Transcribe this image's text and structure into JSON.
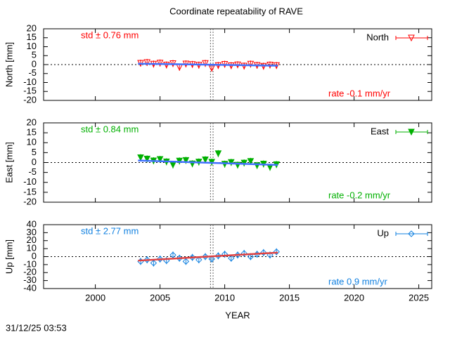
{
  "title": "Coordinate repeatability of RAVE",
  "footer": "31/12/25 03:53",
  "chart_data": [
    {
      "type": "scatter",
      "ylabel": "North [mm]",
      "xlim": [
        1996,
        2026
      ],
      "xticks": [
        2000,
        2005,
        2010,
        2015,
        2020,
        2025
      ],
      "ylim": [
        -20,
        20
      ],
      "yticks": [
        -20,
        -15,
        -10,
        -5,
        0,
        5,
        10,
        15,
        20
      ],
      "annotations": [
        "std ± 0.76 mm",
        "rate -0.1 mm/yr"
      ],
      "color": "#ff0000",
      "vlines": [
        2008.9,
        2009.1
      ],
      "series": [
        {
          "name": "North",
          "color": "#ff0000",
          "marker": "triangle-open",
          "x": [
            2003.5,
            2004,
            2004.5,
            2005,
            2005.5,
            2006,
            2006.5,
            2007,
            2007.5,
            2008,
            2008.5,
            2009,
            2009.5,
            2010,
            2010.5,
            2011,
            2011.5,
            2012,
            2012.5,
            2013,
            2013.5,
            2014
          ],
          "values": [
            0.8,
            1.2,
            0.3,
            0.9,
            -0.2,
            0.6,
            -1.5,
            0.4,
            0.1,
            -0.3,
            0.7,
            -2.0,
            -0.5,
            0.2,
            -0.6,
            -0.1,
            -0.8,
            0.3,
            -0.4,
            -0.9,
            -0.2,
            -0.5
          ]
        }
      ],
      "trend": {
        "color": "#4070ff",
        "x": [
          2003.3,
          2014.1
        ],
        "values": [
          0.5,
          -0.6
        ]
      }
    },
    {
      "type": "scatter",
      "ylabel": "East [mm]",
      "xlim": [
        1996,
        2026
      ],
      "xticks": [
        2000,
        2005,
        2010,
        2015,
        2020,
        2025
      ],
      "ylim": [
        -20,
        20
      ],
      "yticks": [
        -20,
        -15,
        -10,
        -5,
        0,
        5,
        10,
        15,
        20
      ],
      "annotations": [
        "std ± 0.84 mm",
        "rate -0.2 mm/yr"
      ],
      "color": "#00b000",
      "vlines": [
        2008.9,
        2009.1
      ],
      "series": [
        {
          "name": "East",
          "color": "#00b000",
          "marker": "triangle-filled",
          "x": [
            2003.5,
            2004,
            2004.5,
            2005,
            2005.5,
            2006,
            2006.5,
            2007,
            2007.5,
            2008,
            2008.5,
            2009,
            2009.5,
            2010,
            2010.5,
            2011,
            2011.5,
            2012,
            2012.5,
            2013,
            2013.5,
            2014
          ],
          "values": [
            2.5,
            1.8,
            0.9,
            1.6,
            0.4,
            -1.2,
            0.8,
            1.1,
            -0.6,
            0.3,
            1.4,
            0.2,
            4.5,
            -0.8,
            0.1,
            -1.3,
            -0.2,
            0.6,
            -1.5,
            -0.7,
            -2.4,
            -1.0
          ]
        }
      ],
      "trend": {
        "color": "#4070ff",
        "x": [
          2003.3,
          2014.1
        ],
        "values": [
          1.0,
          -1.2
        ]
      }
    },
    {
      "type": "scatter",
      "ylabel": "Up [mm]",
      "xlabel": "YEAR",
      "xlim": [
        1996,
        2026
      ],
      "xticks": [
        2000,
        2005,
        2010,
        2015,
        2020,
        2025
      ],
      "ylim": [
        -40,
        40
      ],
      "yticks": [
        -40,
        -30,
        -20,
        -10,
        0,
        10,
        20,
        30,
        40
      ],
      "annotations": [
        "std ± 2.77 mm",
        "rate  0.9 mm/yr"
      ],
      "color": "#1080e0",
      "vlines": [
        2008.9,
        2009.1
      ],
      "series": [
        {
          "name": "Up",
          "color": "#1080e0",
          "marker": "diamond-open",
          "x": [
            2003.5,
            2004,
            2004.5,
            2005,
            2005.5,
            2006,
            2006.5,
            2007,
            2007.5,
            2008,
            2008.5,
            2009,
            2009.5,
            2010,
            2010.5,
            2011,
            2011.5,
            2012,
            2012.5,
            2013,
            2013.5,
            2014
          ],
          "values": [
            -6,
            -4,
            -8,
            -3,
            -5,
            2,
            -2,
            -6,
            -1,
            -4,
            0,
            -3,
            1,
            3,
            -2,
            2,
            4,
            0,
            3,
            5,
            2,
            6
          ]
        }
      ],
      "trend": {
        "color": "#e04040",
        "x": [
          2003.3,
          2014.1
        ],
        "values": [
          -5,
          5
        ]
      }
    }
  ]
}
